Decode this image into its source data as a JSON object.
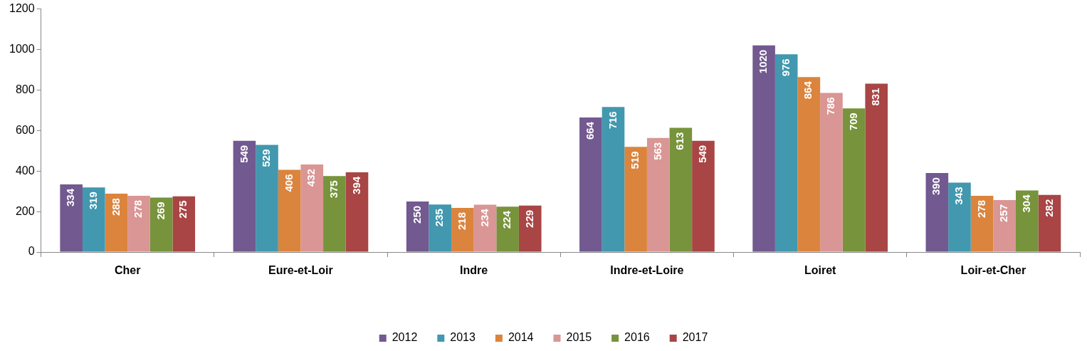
{
  "chart_data": {
    "type": "bar",
    "categories": [
      "Cher",
      "Eure-et-Loir",
      "Indre",
      "Indre-et-Loire",
      "Loiret",
      "Loir-et-Cher"
    ],
    "series": [
      {
        "name": "2012",
        "color": "#725990",
        "values": [
          334,
          549,
          250,
          664,
          1020,
          390
        ]
      },
      {
        "name": "2013",
        "color": "#4198af",
        "values": [
          319,
          529,
          235,
          716,
          976,
          343
        ]
      },
      {
        "name": "2014",
        "color": "#db843d",
        "values": [
          288,
          406,
          218,
          519,
          864,
          278
        ]
      },
      {
        "name": "2015",
        "color": "#d99694",
        "values": [
          278,
          432,
          234,
          563,
          786,
          257
        ]
      },
      {
        "name": "2016",
        "color": "#77933c",
        "values": [
          269,
          375,
          224,
          613,
          709,
          304
        ]
      },
      {
        "name": "2017",
        "color": "#a94545",
        "values": [
          275,
          394,
          229,
          549,
          831,
          282
        ]
      }
    ],
    "ylim": [
      0,
      1200
    ],
    "yticks": [
      0,
      200,
      400,
      600,
      800,
      1000,
      1200
    ],
    "grid": false,
    "legend": "bottom",
    "data_labels": true
  }
}
